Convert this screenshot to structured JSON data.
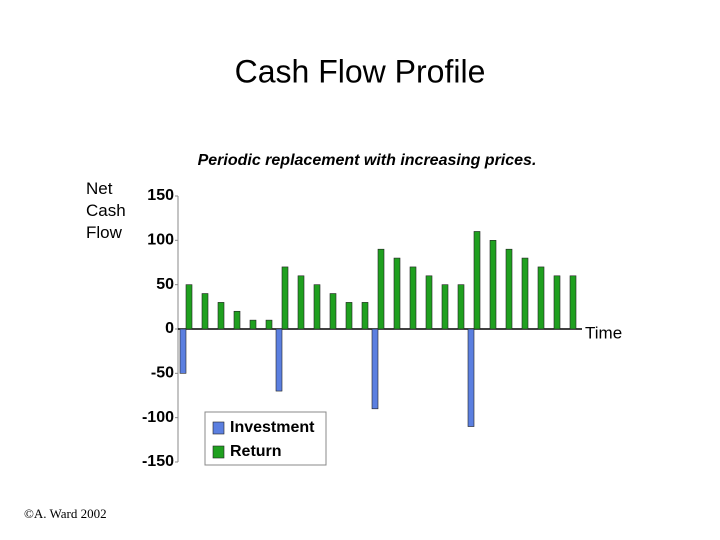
{
  "chart_data": {
    "type": "bar",
    "title": "Cash Flow Profile",
    "subtitle": "Periodic replacement with increasing prices.",
    "y_label": "Net Cash Flow",
    "x_label": "Time",
    "categories": [
      null,
      null,
      null,
      null,
      null,
      null,
      null,
      null,
      null,
      null,
      null,
      null,
      null,
      null,
      null,
      null,
      null,
      null,
      null,
      null,
      null,
      null,
      null,
      null,
      null
    ],
    "series": [
      {
        "name": "Investment",
        "color": "#5b7fe0",
        "values": [
          -50,
          null,
          null,
          null,
          null,
          null,
          -70,
          null,
          null,
          null,
          null,
          null,
          -90,
          null,
          null,
          null,
          null,
          null,
          -110,
          null,
          null,
          null,
          null,
          null,
          null
        ]
      },
      {
        "name": "Return",
        "color": "#1fa01f",
        "values": [
          50,
          40,
          30,
          20,
          10,
          10,
          70,
          60,
          50,
          40,
          30,
          30,
          90,
          80,
          70,
          60,
          50,
          50,
          110,
          100,
          90,
          80,
          70,
          60,
          60
        ]
      }
    ],
    "ylim": [
      -150,
      150
    ],
    "yticks": [
      -150,
      -100,
      -50,
      0,
      50,
      100,
      150
    ]
  },
  "footer": "©A. Ward 2002"
}
